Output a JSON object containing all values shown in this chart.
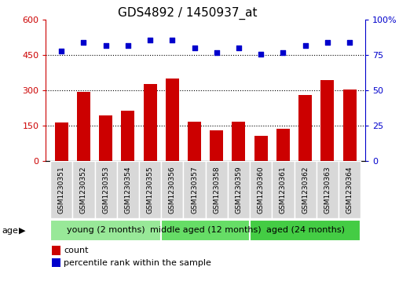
{
  "title": "GDS4892 / 1450937_at",
  "samples": [
    "GSM1230351",
    "GSM1230352",
    "GSM1230353",
    "GSM1230354",
    "GSM1230355",
    "GSM1230356",
    "GSM1230357",
    "GSM1230358",
    "GSM1230359",
    "GSM1230360",
    "GSM1230361",
    "GSM1230362",
    "GSM1230363",
    "GSM1230364"
  ],
  "counts": [
    165,
    293,
    195,
    215,
    328,
    350,
    168,
    130,
    168,
    108,
    138,
    280,
    345,
    305
  ],
  "percentile_ranks": [
    78,
    84,
    82,
    82,
    86,
    86,
    80,
    77,
    80,
    76,
    77,
    82,
    84,
    84
  ],
  "ylim_left": [
    0,
    600
  ],
  "ylim_right": [
    0,
    100
  ],
  "yticks_left": [
    0,
    150,
    300,
    450,
    600
  ],
  "yticks_right": [
    0,
    25,
    50,
    75,
    100
  ],
  "grid_lines": [
    150,
    300,
    450
  ],
  "groups": [
    {
      "label": "young (2 months)",
      "start": 0,
      "end": 5
    },
    {
      "label": "middle aged (12 months)",
      "start": 5,
      "end": 9
    },
    {
      "label": "aged (24 months)",
      "start": 9,
      "end": 14
    }
  ],
  "group_colors": [
    "#98E898",
    "#66DD66",
    "#44CC44"
  ],
  "bar_color": "#CC0000",
  "dot_color": "#0000CC",
  "left_axis_color": "#CC0000",
  "right_axis_color": "#0000CC",
  "title_fontsize": 11,
  "tick_label_fontsize": 6.5,
  "legend_fontsize": 8,
  "group_label_fontsize": 8,
  "age_label_fontsize": 8,
  "background_color": "#ffffff"
}
